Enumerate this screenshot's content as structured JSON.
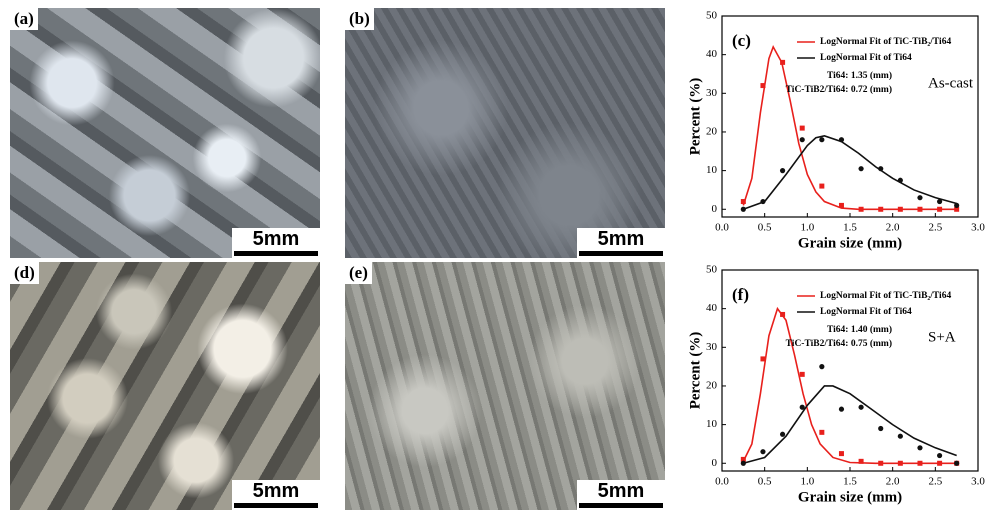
{
  "panels": [
    {
      "label": "(a)",
      "scale_bar": "5mm"
    },
    {
      "label": "(b)",
      "scale_bar": "5mm"
    },
    {
      "label": "(d)",
      "scale_bar": "5mm"
    },
    {
      "label": "(e)",
      "scale_bar": "5mm"
    }
  ],
  "chart_data": [
    {
      "type": "line",
      "label": "(c)",
      "annotation": "As-cast",
      "stats": [
        "Ti64: 1.35 (mm)",
        "TiC-TiB2/Ti64: 0.72 (mm)"
      ],
      "xlabel": "Grain size (mm)",
      "ylabel": "Percent (%)",
      "xlim": [
        0,
        3
      ],
      "ylim": [
        -2,
        50
      ],
      "xticks": [
        {
          "value": 0,
          "label": "0.0"
        },
        {
          "value": 0.5,
          "label": "0.5"
        },
        {
          "value": 1,
          "label": "1.0"
        },
        {
          "value": 1.5,
          "label": "1.5"
        },
        {
          "value": 2,
          "label": "2.0"
        },
        {
          "value": 2.5,
          "label": "2.5"
        },
        {
          "value": 3,
          "label": "3.0"
        }
      ],
      "yticks": [
        0,
        10,
        20,
        30,
        40,
        50
      ],
      "series": [
        {
          "name": "LogNormal Fit of TiC-TiB₂/Ti64",
          "color": "#e8201c",
          "marker": "square",
          "fit": {
            "x": [
              0.25,
              0.35,
              0.45,
              0.55,
              0.6,
              0.7,
              0.8,
              0.9,
              1.0,
              1.1,
              1.2,
              1.4,
              1.6,
              2.0,
              2.75
            ],
            "values": [
              1,
              8,
              25,
              39,
              42,
              38,
              28,
              17,
              9,
              4.5,
              2,
              0.3,
              0,
              0,
              0
            ]
          },
          "points": {
            "x": [
              0.25,
              0.48,
              0.71,
              0.94,
              1.17,
              1.4,
              1.63,
              1.86,
              2.09,
              2.32,
              2.55,
              2.75
            ],
            "values": [
              2,
              32,
              38,
              21,
              6,
              1,
              0,
              0,
              0,
              0,
              0,
              0
            ]
          }
        },
        {
          "name": "LogNormal Fit of Ti64",
          "color": "#111111",
          "marker": "circle",
          "fit": {
            "x": [
              0.25,
              0.5,
              0.75,
              1.0,
              1.1,
              1.2,
              1.4,
              1.6,
              1.8,
              2.0,
              2.25,
              2.5,
              2.75
            ],
            "values": [
              0,
              2,
              9,
              16.5,
              18.5,
              19,
              17.5,
              14.5,
              11,
              8,
              5,
              3,
              1.5
            ]
          },
          "points": {
            "x": [
              0.25,
              0.48,
              0.71,
              0.94,
              1.17,
              1.4,
              1.63,
              1.86,
              2.09,
              2.32,
              2.55,
              2.75
            ],
            "values": [
              0,
              2,
              10,
              18,
              18,
              18,
              10.5,
              10.5,
              7.5,
              3,
              2,
              1
            ]
          }
        }
      ]
    },
    {
      "type": "line",
      "label": "(f)",
      "annotation": "S+A",
      "stats": [
        "Ti64: 1.40 (mm)",
        "TiC-TiB2/Ti64: 0.75 (mm)"
      ],
      "xlabel": "Grain size (mm)",
      "ylabel": "Percent (%)",
      "xlim": [
        0,
        3
      ],
      "ylim": [
        -2,
        50
      ],
      "xticks": [
        {
          "value": 0,
          "label": "0.0"
        },
        {
          "value": 0.5,
          "label": "0.5"
        },
        {
          "value": 1,
          "label": "1.0"
        },
        {
          "value": 1.5,
          "label": "1.5"
        },
        {
          "value": 2,
          "label": "2.0"
        },
        {
          "value": 2.5,
          "label": "2.5"
        },
        {
          "value": 3,
          "label": "3.0"
        }
      ],
      "yticks": [
        0,
        10,
        20,
        30,
        40,
        50
      ],
      "series": [
        {
          "name": "LogNormal Fit of TiC-TiB₂/Ti64",
          "color": "#e8201c",
          "marker": "square",
          "fit": {
            "x": [
              0.25,
              0.35,
              0.45,
              0.55,
              0.65,
              0.75,
              0.85,
              0.95,
              1.05,
              1.15,
              1.3,
              1.5,
              1.8,
              2.75
            ],
            "values": [
              0.5,
              5,
              18,
              33,
              40,
              37,
              28,
              18,
              10,
              5,
              1.5,
              0.2,
              0,
              0
            ]
          },
          "points": {
            "x": [
              0.25,
              0.48,
              0.71,
              0.94,
              1.17,
              1.4,
              1.63,
              1.86,
              2.09,
              2.32,
              2.55,
              2.75
            ],
            "values": [
              1,
              27,
              38.5,
              23,
              8,
              2.5,
              0.5,
              0,
              0,
              0,
              0,
              0
            ]
          }
        },
        {
          "name": "LogNormal Fit of Ti64",
          "color": "#111111",
          "marker": "circle",
          "fit": {
            "x": [
              0.25,
              0.5,
              0.75,
              1.0,
              1.2,
              1.3,
              1.5,
              1.75,
              2.0,
              2.25,
              2.5,
              2.75
            ],
            "values": [
              0,
              1.5,
              7,
              15,
              20,
              20,
              18,
              14,
              10,
              6.5,
              4,
              2
            ]
          },
          "points": {
            "x": [
              0.25,
              0.48,
              0.71,
              0.94,
              1.17,
              1.4,
              1.63,
              1.86,
              2.09,
              2.32,
              2.55,
              2.75
            ],
            "values": [
              0,
              3,
              7.5,
              14.5,
              25,
              14,
              14.5,
              9,
              7,
              4,
              2,
              0
            ]
          }
        }
      ]
    }
  ]
}
